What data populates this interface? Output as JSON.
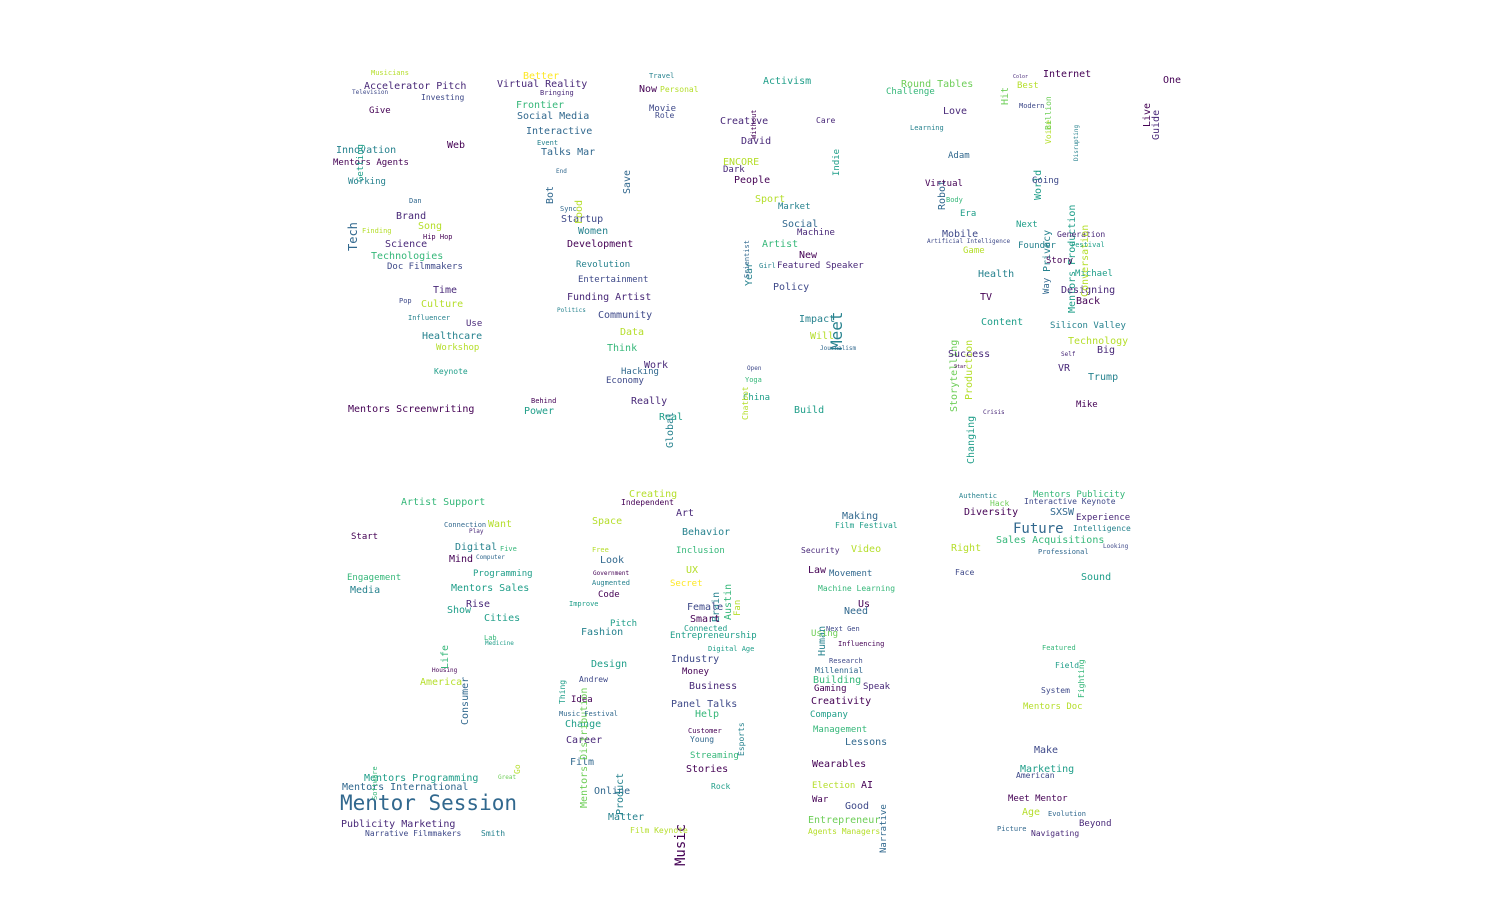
{
  "palette": {
    "background": "#ffffff",
    "viridis": [
      "#440154",
      "#482878",
      "#3e4989",
      "#31688e",
      "#26828e",
      "#1f9e89",
      "#35b779",
      "#6ece58",
      "#b5de2b",
      "#fde725"
    ]
  },
  "cloud": {
    "words": [
      "Mentor Session",
      "Meet",
      "Future",
      "Music",
      "Tech",
      "Accelerator Pitch",
      "Virtual Reality",
      "Social Media",
      "Interactive",
      "Talks Mar",
      "Development",
      "Funding Artist",
      "Community",
      "Entertainment",
      "Revolution",
      "Innovation",
      "Mentors Agents",
      "Brand",
      "Song",
      "Science",
      "Technologies",
      "Doc Filmmakers",
      "Time",
      "Culture",
      "Healthcare",
      "Workshop",
      "Keynote",
      "Mentors Screenwriting",
      "Web",
      "Give",
      "Investing",
      "Better",
      "Frontier",
      "Startup",
      "Women",
      "Food",
      "Save",
      "Now",
      "Personal",
      "Movie",
      "Role",
      "Think",
      "Work",
      "Economy",
      "Power",
      "Really",
      "Real",
      "Global",
      "Data",
      "Activism",
      "Creative",
      "David",
      "ENCORE",
      "Dark",
      "People",
      "Sport",
      "Social",
      "Machine",
      "Market",
      "Artist",
      "New",
      "Policy",
      "Impact",
      "Will",
      "Build",
      "China",
      "Round Tables",
      "Challenge",
      "Love",
      "Robot",
      "Adam",
      "Virtual",
      "Era",
      "Mobile",
      "Game",
      "Health",
      "TV",
      "Content",
      "Production",
      "Storytelling",
      "Changing",
      "Success",
      "Internet",
      "Best",
      "World",
      "Going",
      "Mentors Production",
      "Privacy",
      "Next",
      "Founder",
      "Generation",
      "Story",
      "Michael",
      "Designing",
      "Back",
      "Silicon Valley",
      "Technology",
      "Big",
      "VR",
      "Trump",
      "Mike",
      "Live",
      "Guide",
      "One",
      "Conversation",
      "Artist Support",
      "Want",
      "Digital",
      "Mind",
      "Programming",
      "Mentors Sales",
      "Engagement",
      "Media",
      "Show",
      "Rise",
      "Cities",
      "Life",
      "Consumer",
      "America",
      "Mentors Programming",
      "Mentors International",
      "Publicity Marketing",
      "Narrative Filmmakers",
      "Smith",
      "Start",
      "Creating",
      "Independent",
      "Space",
      "Look",
      "Code",
      "Fashion",
      "Pitch",
      "Design",
      "Idea",
      "Change",
      "Career",
      "Film",
      "Online",
      "Matter",
      "Film Keynote",
      "Product",
      "Mentors Distribution",
      "Art",
      "Behavior",
      "Inclusion",
      "UX",
      "Secret",
      "Brain",
      "Austin",
      "Fan",
      "Female",
      "Smart",
      "Entrepreneurship",
      "Industry",
      "Money",
      "Business",
      "Panel Talks",
      "Help",
      "Streaming",
      "Stories",
      "Rock",
      "Esports",
      "Video",
      "Making",
      "Film Festival",
      "Law",
      "Movement",
      "Human",
      "Using",
      "Us",
      "Need",
      "Building",
      "Gaming",
      "Speak",
      "Creativity",
      "Company",
      "Management",
      "Lessons",
      "Wearables",
      "Election",
      "AI",
      "War",
      "Good",
      "Entrepreneur",
      "Agents Managers",
      "Narrative",
      "Diversity",
      "SXSW",
      "Experience",
      "Mentors Publicity",
      "Interactive Keynote",
      "Sales Acquisitions",
      "Right",
      "Sound",
      "Face",
      "Mentors Doc",
      "Make",
      "Marketing",
      "American",
      "Meet Mentor",
      "Age",
      "Beyond",
      "Navigating",
      "Picture",
      "Musicians",
      "Television",
      "Getting",
      "Working",
      "Dan",
      "Finding",
      "Hip Hop",
      "Pop",
      "Influencer",
      "Use",
      "Bringing",
      "Bot",
      "Event",
      "End",
      "Sync",
      "Politics",
      "Hacking",
      "Behind",
      "Travel",
      "Without",
      "Indie",
      "Care",
      "Girl",
      "Featured Speaker",
      "Journalism",
      "Open",
      "Yoga",
      "Year",
      "Scientist",
      "Chatbot",
      "Learning",
      "Body",
      "Artificial Intelligence",
      "Star",
      "Crisis",
      "Hit",
      "Color",
      "Modern",
      "Voice",
      "Disrupting",
      "Festival",
      "Way",
      "Self",
      "Billion",
      "Connection",
      "Play",
      "Computer",
      "Five",
      "Lab",
      "Medicine",
      "Housing",
      "Go",
      "Great",
      "Software",
      "Free",
      "Augmented",
      "Government",
      "Improve",
      "Thing",
      "Andrew",
      "Music Festival",
      "Customer",
      "Young",
      "Connected",
      "Digital Age",
      "Security",
      "Machine Learning",
      "Next Gen",
      "Research",
      "Millennial",
      "Influencing",
      "Authentic",
      "Hack",
      "Intelligence",
      "Professional",
      "Looking",
      "Featured",
      "Field",
      "System",
      "Fighting",
      "Evolution"
    ]
  }
}
